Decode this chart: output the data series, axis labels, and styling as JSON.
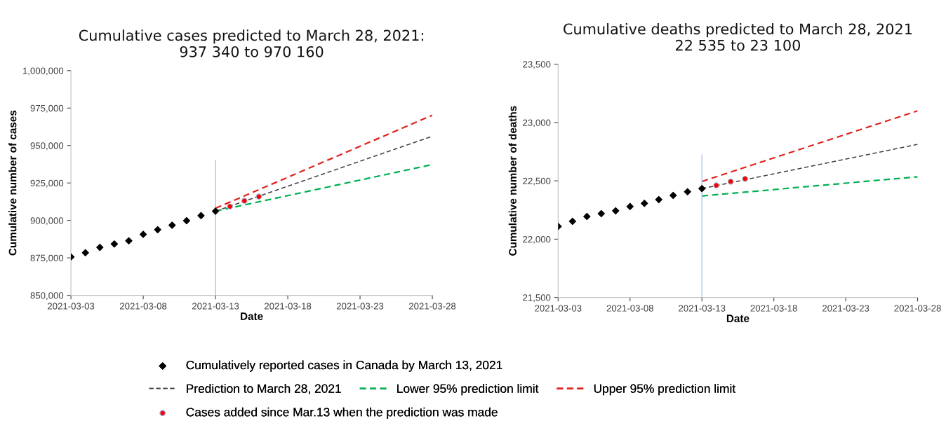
{
  "chart_data": [
    {
      "type": "scatter",
      "title": "Cumulative cases predicted to March 28, 2021:\n937 340 to 970 160",
      "xlabel": "Date",
      "ylabel": "Cumulative number of cases",
      "xlim": [
        "2021-03-03",
        "2021-03-28"
      ],
      "xticks": [
        "2021-03-03",
        "2021-03-08",
        "2021-03-13",
        "2021-03-18",
        "2021-03-23",
        "2021-03-28"
      ],
      "ylim": [
        850000,
        1000000
      ],
      "yticks": [
        {
          "value": 850000,
          "label": "850,000"
        },
        {
          "value": 875000,
          "label": "875,000"
        },
        {
          "value": 900000,
          "label": "900,000"
        },
        {
          "value": 925000,
          "label": "925,000"
        },
        {
          "value": 950000,
          "label": "950,000"
        },
        {
          "value": 975000,
          "label": "975,000"
        },
        {
          "value": 1000000,
          "label": "1,000,000"
        }
      ],
      "grid": false,
      "legend": "bottom",
      "series": [
        {
          "name": "Cumulatively reported cases in Canada by March 13, 2021",
          "marker": "diamond",
          "color": "#000000",
          "x": [
            "2021-03-03",
            "2021-03-04",
            "2021-03-05",
            "2021-03-06",
            "2021-03-07",
            "2021-03-08",
            "2021-03-09",
            "2021-03-10",
            "2021-03-11",
            "2021-03-12",
            "2021-03-13"
          ],
          "values": [
            875600,
            878400,
            882000,
            884300,
            886400,
            890700,
            893800,
            896800,
            899800,
            903200,
            906200
          ]
        },
        {
          "name": "Prediction to March 28, 2021",
          "type": "line",
          "line_style": "dashed",
          "color": "#404040",
          "x": [
            "2021-03-13",
            "2021-03-28"
          ],
          "values": [
            906200,
            956200
          ]
        },
        {
          "name": "Lower 95% prediction limit",
          "type": "line",
          "line_style": "dashed",
          "color": "#00b050",
          "x": [
            "2021-03-13",
            "2021-03-28"
          ],
          "values": [
            906200,
            937300
          ]
        },
        {
          "name": "Upper 95% prediction limit",
          "type": "line",
          "line_style": "dashed",
          "color": "#e0201b",
          "x": [
            "2021-03-13",
            "2021-03-28"
          ],
          "values": [
            908100,
            970200
          ]
        },
        {
          "name": "Cases added since Mar.13 when the prediction was made",
          "marker": "circle",
          "color": "#ff0000",
          "x": [
            "2021-03-14",
            "2021-03-15",
            "2021-03-16"
          ],
          "values": [
            909300,
            913100,
            915900
          ]
        },
        {
          "type": "line",
          "line_style": "solid",
          "color": "#b4c7e7",
          "x": [
            "2021-03-13",
            "2021-03-13"
          ],
          "values": [
            850000,
            940000
          ]
        }
      ]
    },
    {
      "type": "scatter",
      "title": "Cumulative deaths predicted to March 28, 2021\n22 535 to 23 100",
      "xlabel": "Date",
      "ylabel": "Cumulative number of deaths",
      "xlim": [
        "2021-03-03",
        "2021-03-28"
      ],
      "xticks": [
        "2021-03-03",
        "2021-03-08",
        "2021-03-13",
        "2021-03-18",
        "2021-03-23",
        "2021-03-28"
      ],
      "ylim": [
        21500,
        23500
      ],
      "yticks": [
        {
          "value": 21500,
          "label": "21,500"
        },
        {
          "value": 22000,
          "label": "22,000"
        },
        {
          "value": 22500,
          "label": "22,500"
        },
        {
          "value": 23000,
          "label": "23,000"
        },
        {
          "value": 23500,
          "label": "23,500"
        }
      ],
      "grid": false,
      "legend": "bottom",
      "series": [
        {
          "marker": "diamond",
          "color": "#000000",
          "x": [
            "2021-03-03",
            "2021-03-04",
            "2021-03-05",
            "2021-03-06",
            "2021-03-07",
            "2021-03-08",
            "2021-03-09",
            "2021-03-10",
            "2021-03-11",
            "2021-03-12",
            "2021-03-13"
          ],
          "values": [
            22109,
            22153,
            22194,
            22219,
            22243,
            22280,
            22307,
            22339,
            22375,
            22407,
            22434
          ]
        },
        {
          "type": "line",
          "line_style": "dashed",
          "color": "#404040",
          "x": [
            "2021-03-13",
            "2021-03-28"
          ],
          "values": [
            22434,
            22813
          ]
        },
        {
          "type": "line",
          "line_style": "dashed",
          "color": "#00b050",
          "x": [
            "2021-03-13",
            "2021-03-28"
          ],
          "values": [
            22370,
            22535
          ]
        },
        {
          "type": "line",
          "line_style": "dashed",
          "color": "#e0201b",
          "x": [
            "2021-03-13",
            "2021-03-28"
          ],
          "values": [
            22495,
            23100
          ]
        },
        {
          "marker": "circle",
          "color": "#ff0000",
          "x": [
            "2021-03-14",
            "2021-03-15",
            "2021-03-16"
          ],
          "values": [
            22461,
            22493,
            22517
          ]
        },
        {
          "type": "line",
          "line_style": "solid",
          "color": "#b4c7e7",
          "x": [
            "2021-03-13",
            "2021-03-13"
          ],
          "values": [
            21500,
            22720
          ]
        }
      ]
    }
  ]
}
